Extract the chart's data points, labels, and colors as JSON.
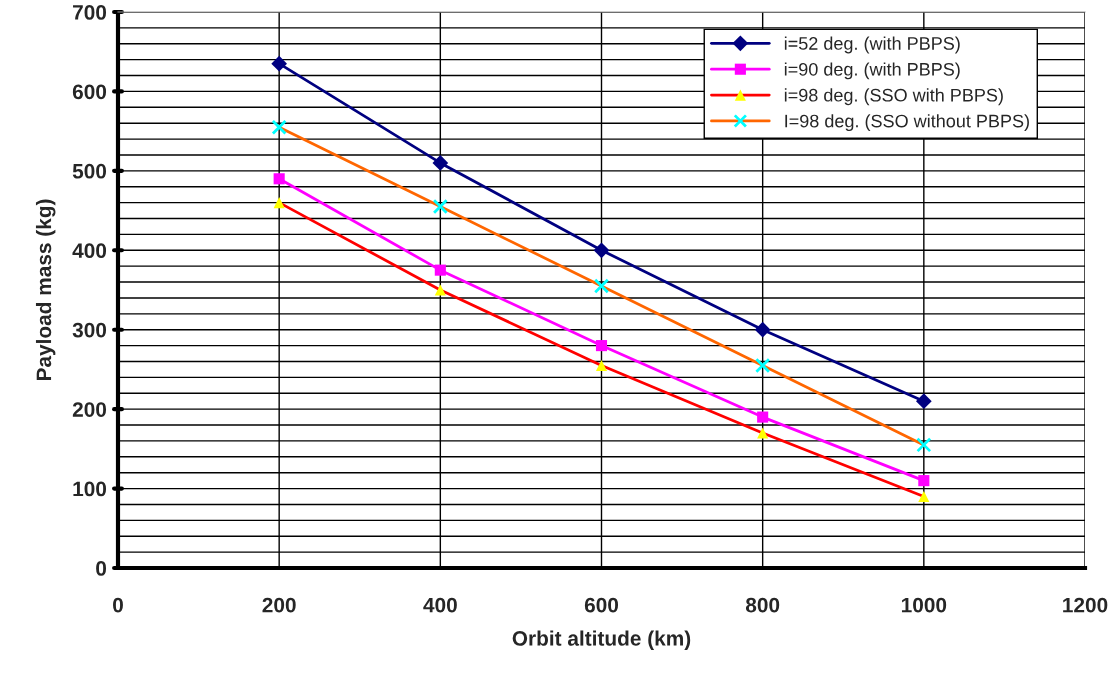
{
  "chart_data": {
    "type": "line",
    "xlabel": "Orbit altitude (km)",
    "ylabel": "Payload mass (kg)",
    "x": [
      200,
      400,
      600,
      800,
      1000
    ],
    "series": [
      {
        "name": "i=52 deg. (with PBPS)",
        "color": "#000080",
        "colors": [
          "#000080",
          "#000080",
          "#000080",
          "#000080",
          "#000080"
        ],
        "marker": "diamond",
        "values": [
          635,
          510,
          400,
          300,
          210
        ]
      },
      {
        "name": "i=90 deg. (with PBPS)",
        "color": "#ff00ff",
        "colors": [
          "#ff00ff",
          "#ff00ff",
          "#ff00ff",
          "#ff00ff",
          "#ff00ff"
        ],
        "marker": "square",
        "values": [
          490,
          375,
          280,
          190,
          110
        ]
      },
      {
        "name": "i=98 deg. (SSO with PBPS)",
        "color": "#ff0000",
        "colors": [
          "#ffff00",
          "#ffff00",
          "#ffff00",
          "#ffff00",
          "#ffff00"
        ],
        "marker": "triangle",
        "values": [
          460,
          350,
          255,
          170,
          90
        ]
      },
      {
        "name": "I=98 deg. (SSO without PBPS)",
        "color": "#ff6600",
        "colors": [
          "#00ffff",
          "#00ffff",
          "#00ffff",
          "#00ffff",
          "#00ffff"
        ],
        "marker": "cross",
        "values": [
          555,
          455,
          355,
          255,
          155
        ]
      }
    ],
    "xlim": [
      0,
      1200
    ],
    "xticks": [
      0,
      200,
      400,
      600,
      800,
      1000,
      1200
    ],
    "ylim": [
      0,
      700
    ],
    "yticks": [
      0,
      {
        "value": 20,
        "label": null
      },
      {
        "value": 40,
        "label": null
      },
      {
        "value": 60,
        "label": null
      },
      {
        "value": 80,
        "label": null
      },
      100,
      {
        "value": 120,
        "label": null
      },
      {
        "value": 140,
        "label": null
      },
      {
        "value": 160,
        "label": null
      },
      {
        "value": 180,
        "label": null
      },
      200,
      {
        "value": 220,
        "label": null
      },
      {
        "value": 240,
        "label": null
      },
      {
        "value": 260,
        "label": null
      },
      {
        "value": 280,
        "label": null
      },
      300,
      {
        "value": 320,
        "label": null
      },
      {
        "value": 340,
        "label": null
      },
      {
        "value": 360,
        "label": null
      },
      {
        "value": 380,
        "label": null
      },
      400,
      {
        "value": 420,
        "label": null
      },
      {
        "value": 440,
        "label": null
      },
      {
        "value": 460,
        "label": null
      },
      {
        "value": 480,
        "label": null
      },
      500,
      {
        "value": 520,
        "label": null
      },
      {
        "value": 540,
        "label": null
      },
      {
        "value": 560,
        "label": null
      },
      {
        "value": 580,
        "label": null
      },
      600,
      {
        "value": 620,
        "label": null
      },
      {
        "value": 640,
        "label": null
      },
      {
        "value": 660,
        "label": null
      },
      {
        "value": 680,
        "label": null
      },
      700
    ],
    "grid": true,
    "legend": "top right",
    "line_style": "solid"
  }
}
